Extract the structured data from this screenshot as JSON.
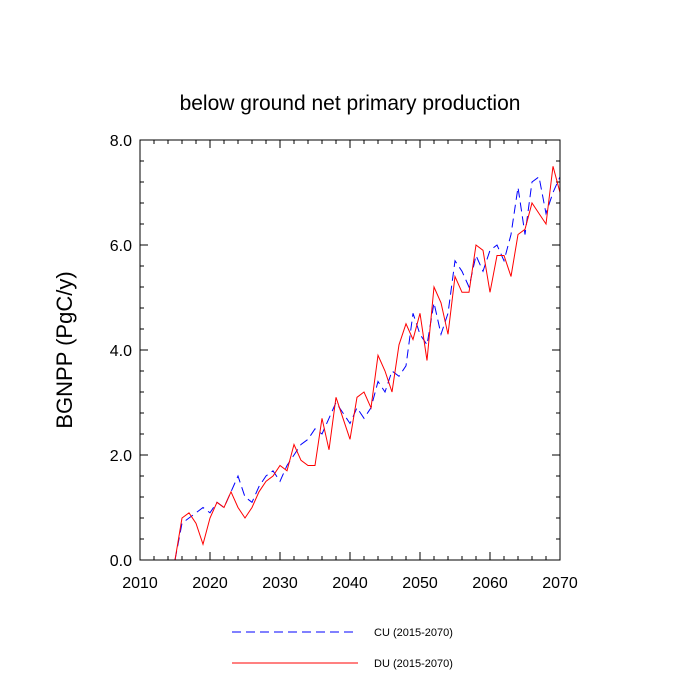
{
  "chart_data": {
    "type": "line",
    "title": "below ground net primary production",
    "xlabel": "",
    "ylabel": "BGNPP  (PgC/y)",
    "xlim": [
      2010,
      2070
    ],
    "ylim": [
      0,
      8
    ],
    "x_ticks": [
      "2010",
      "2020",
      "2030",
      "2040",
      "2050",
      "2060",
      "2070"
    ],
    "y_ticks": [
      "0.0",
      "2.0",
      "4.0",
      "6.0",
      "8.0"
    ],
    "grid": false,
    "legend_position": "bottom",
    "x": [
      2015,
      2016,
      2017,
      2018,
      2019,
      2020,
      2021,
      2022,
      2023,
      2024,
      2025,
      2026,
      2027,
      2028,
      2029,
      2030,
      2031,
      2032,
      2033,
      2034,
      2035,
      2036,
      2037,
      2038,
      2039,
      2040,
      2041,
      2042,
      2043,
      2044,
      2045,
      2046,
      2047,
      2048,
      2049,
      2050,
      2051,
      2052,
      2053,
      2054,
      2055,
      2056,
      2057,
      2058,
      2059,
      2060,
      2061,
      2062,
      2063,
      2064,
      2065,
      2066,
      2067,
      2068,
      2069,
      2070
    ],
    "series": [
      {
        "name": "CU (2015-2070)",
        "color": "#0000ff",
        "dash": "dashed",
        "values": [
          0.0,
          0.7,
          0.8,
          0.9,
          1.0,
          0.9,
          1.1,
          1.0,
          1.3,
          1.6,
          1.2,
          1.1,
          1.4,
          1.6,
          1.7,
          1.5,
          1.8,
          2.0,
          2.2,
          2.3,
          2.5,
          2.4,
          2.7,
          3.0,
          2.8,
          2.6,
          2.9,
          2.7,
          2.9,
          3.4,
          3.2,
          3.6,
          3.5,
          3.7,
          4.7,
          4.3,
          4.1,
          4.9,
          4.3,
          4.7,
          5.7,
          5.5,
          5.2,
          5.8,
          5.5,
          5.9,
          6.0,
          5.7,
          6.2,
          7.1,
          6.2,
          7.2,
          7.3,
          6.6,
          7.0,
          7.3
        ]
      },
      {
        "name": "DU (2015-2070)",
        "color": "#ff0000",
        "dash": "solid",
        "values": [
          0.0,
          0.8,
          0.9,
          0.7,
          0.3,
          0.8,
          1.1,
          1.0,
          1.3,
          1.0,
          0.8,
          1.0,
          1.3,
          1.5,
          1.6,
          1.8,
          1.7,
          2.2,
          1.9,
          1.8,
          1.8,
          2.7,
          2.1,
          3.1,
          2.7,
          2.3,
          3.1,
          3.2,
          2.9,
          3.9,
          3.6,
          3.2,
          4.1,
          4.5,
          4.2,
          4.7,
          3.8,
          5.2,
          4.9,
          4.3,
          5.4,
          5.1,
          5.1,
          6.0,
          5.9,
          5.1,
          5.8,
          5.8,
          5.4,
          6.2,
          6.3,
          6.8,
          6.6,
          6.4,
          7.5,
          7.0
        ]
      }
    ]
  }
}
